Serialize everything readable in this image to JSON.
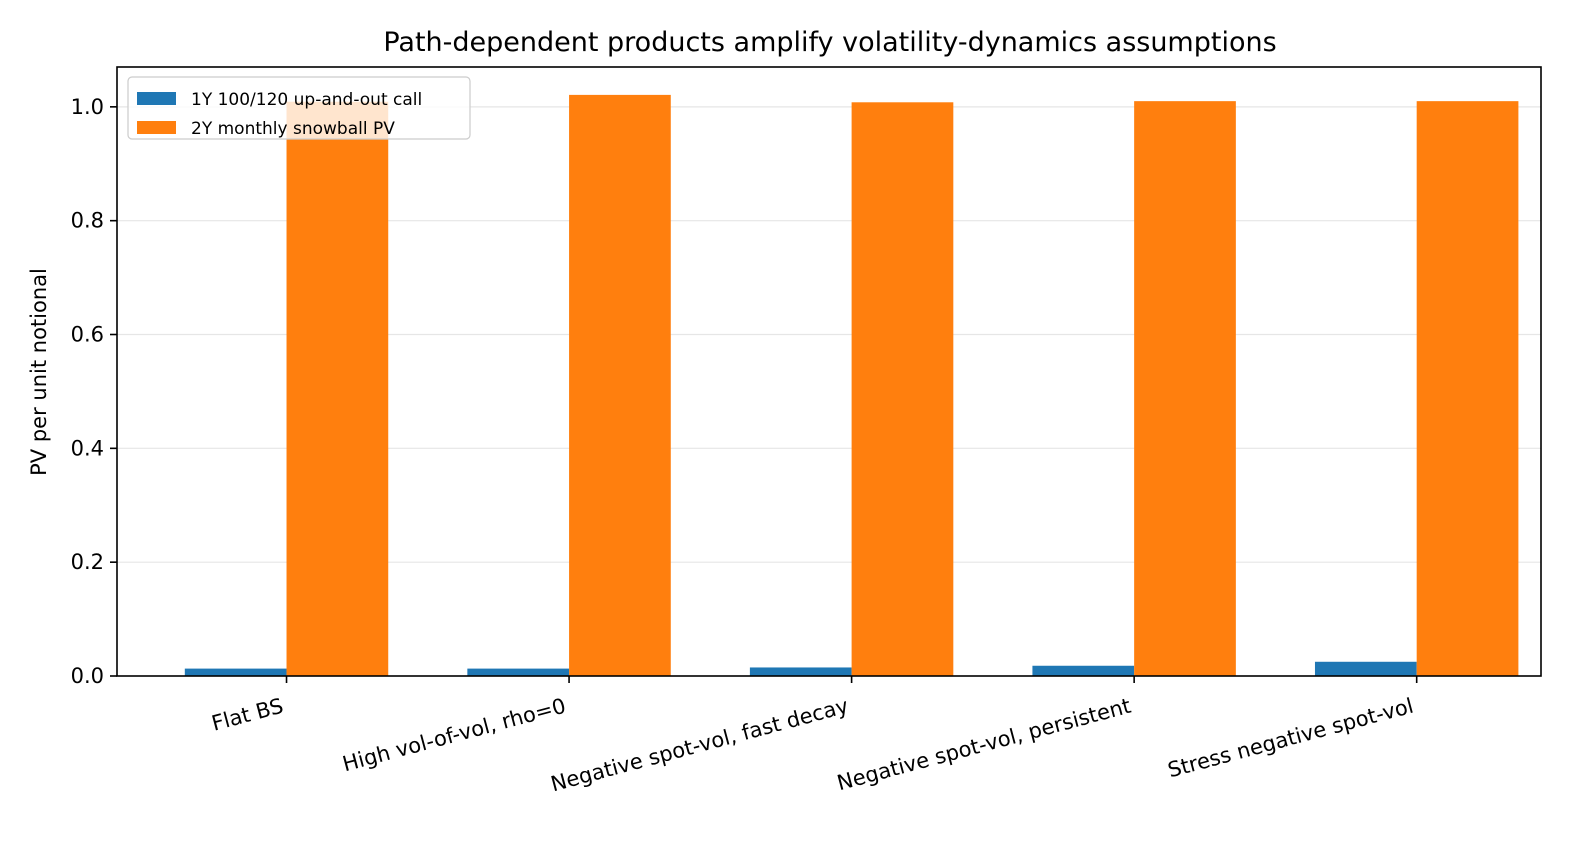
{
  "chart_data": {
    "type": "bar",
    "title": "Path-dependent products amplify volatility-dynamics assumptions",
    "xlabel": "",
    "ylabel": "PV per unit notional",
    "categories": [
      "Flat BS",
      "High vol-of-vol, rho=0",
      "Negative spot-vol, fast decay",
      "Negative spot-vol, persistent",
      "Stress negative spot-vol"
    ],
    "series": [
      {
        "name": "1Y 100/120 up-and-out call",
        "color": "#1f77b4",
        "values": [
          0.013,
          0.013,
          0.015,
          0.018,
          0.025
        ]
      },
      {
        "name": "2Y monthly snowball PV",
        "color": "#ff7f0e",
        "values": [
          1.009,
          1.021,
          1.008,
          1.01,
          1.01
        ]
      }
    ],
    "ylim": [
      0,
      1.07
    ],
    "yticks": [
      "0.0",
      "0.2",
      "0.4",
      "0.6",
      "0.8",
      "1.0"
    ],
    "grid": "y",
    "legend_position": "top-left"
  }
}
